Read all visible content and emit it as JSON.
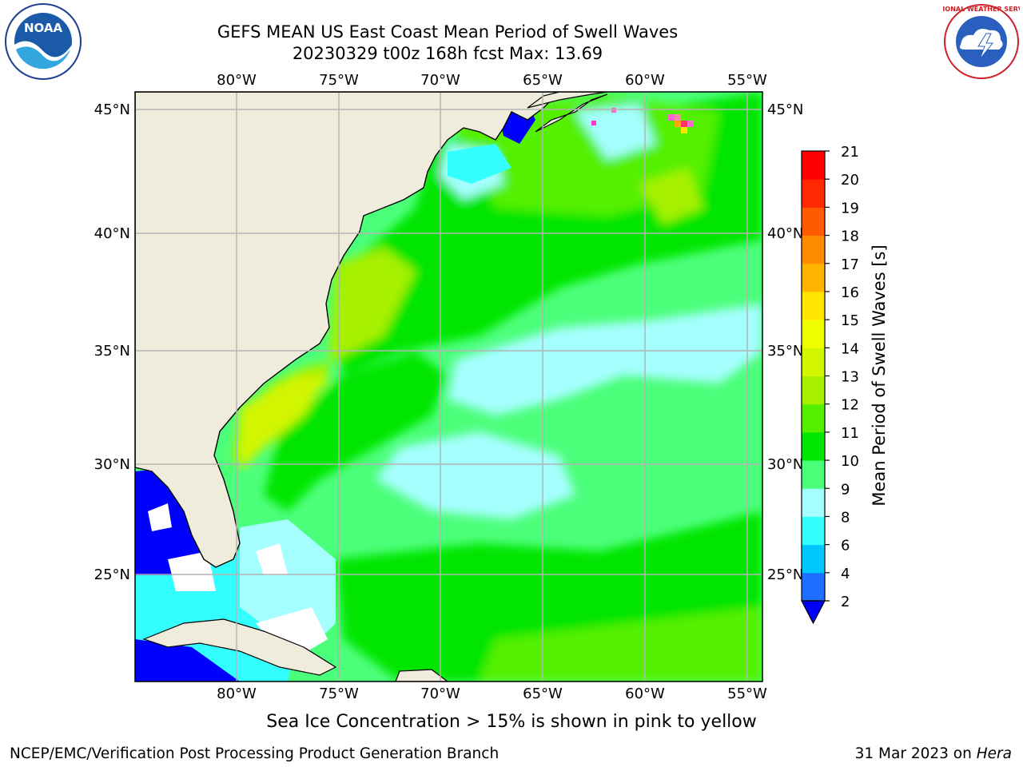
{
  "header": {
    "title_line1": "GEFS MEAN US East Coast Mean Period of Swell Waves",
    "title_line2": "20230329 t00z 168h fcst   Max: 13.69"
  },
  "logos": {
    "left": "noaa-logo",
    "right": "national-weather-service-logo",
    "left_text": "NOAA",
    "right_ring_text": "NATIONAL WEATHER SERVICE"
  },
  "map": {
    "lon_labels": [
      "80°W",
      "75°W",
      "70°W",
      "65°W",
      "60°W",
      "55°W"
    ],
    "lat_labels_left": [
      "45°N",
      "40°N",
      "35°N",
      "30°N",
      "25°N"
    ],
    "lat_labels_right": [
      "45°N",
      "40°N",
      "35°N",
      "30°N",
      "25°N"
    ]
  },
  "colorbar": {
    "label": "Mean Period of Swell Waves [s]",
    "ticks": [
      "2",
      "4",
      "6",
      "8",
      "9",
      "10",
      "11",
      "12",
      "13",
      "14",
      "15",
      "16",
      "17",
      "18",
      "19",
      "20",
      "21"
    ],
    "colors": [
      "#1e6fff",
      "#00c8ff",
      "#33ffff",
      "#a5ffff",
      "#4cff7a",
      "#00e600",
      "#55f000",
      "#a6f000",
      "#d2f500",
      "#f0ff00",
      "#ffe600",
      "#ffb400",
      "#ff8c00",
      "#ff5a00",
      "#ff2800",
      "#ff0000"
    ],
    "under_color": "#0000ff"
  },
  "footer": {
    "ice_note": "Sea Ice Concentration > 15% is shown in pink to yellow",
    "credit": "NCEP/EMC/Verification Post Processing Product Generation Branch",
    "date": "31 Mar 2023 on",
    "machine": "Hera"
  }
}
